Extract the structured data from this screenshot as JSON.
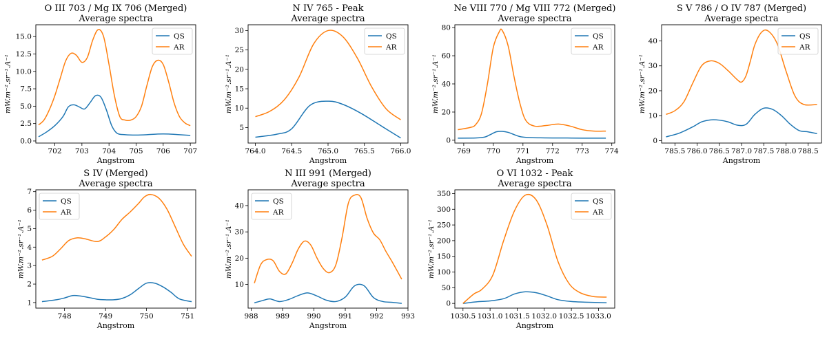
{
  "colors": {
    "QS": "#1f77b4",
    "AR": "#ff7f0e"
  },
  "chart_data": [
    {
      "type": "line",
      "title": "O III 703 / Mg IX 706 (Merged)",
      "subtitle": "Average spectra",
      "xlabel": "Angstrom",
      "ylabel": "mW.m⁻².sr⁻¹.A⁻¹",
      "xlim": [
        701.3,
        707.2
      ],
      "ylim": [
        -0.3,
        16.7
      ],
      "xticks": [
        702,
        703,
        704,
        705,
        706,
        707
      ],
      "xtick_labels": [
        "702",
        "703",
        "704",
        "705",
        "706",
        "707"
      ],
      "yticks": [
        0,
        2.5,
        5,
        7.5,
        10,
        12.5,
        15
      ],
      "ytick_labels": [
        "0.0",
        "2.5",
        "5.0",
        "7.5",
        "10.0",
        "12.5",
        "15.0"
      ],
      "legend": [
        "QS",
        "AR"
      ],
      "legend_position": "top-right",
      "series": [
        {
          "name": "QS",
          "x": [
            701.4,
            701.7,
            702.0,
            702.3,
            702.5,
            702.7,
            702.9,
            703.1,
            703.3,
            703.5,
            703.7,
            703.9,
            704.1,
            704.3,
            704.6,
            705.0,
            705.4,
            705.8,
            706.2,
            706.6,
            707.0
          ],
          "y": [
            0.6,
            1.3,
            2.2,
            3.5,
            4.9,
            5.2,
            4.9,
            4.6,
            5.5,
            6.5,
            6.3,
            4.5,
            2.2,
            1.1,
            0.9,
            0.85,
            0.9,
            1.0,
            1.0,
            0.9,
            0.8
          ]
        },
        {
          "name": "AR",
          "x": [
            701.4,
            701.6,
            701.8,
            702.0,
            702.2,
            702.4,
            702.6,
            702.8,
            703.0,
            703.2,
            703.4,
            703.6,
            703.8,
            704.0,
            704.2,
            704.4,
            704.6,
            704.8,
            705.0,
            705.2,
            705.4,
            705.6,
            705.8,
            706.0,
            706.2,
            706.4,
            706.6,
            706.8,
            707.0
          ],
          "y": [
            2.3,
            3.0,
            4.5,
            6.5,
            9.0,
            11.5,
            12.6,
            12.3,
            11.3,
            12.0,
            14.5,
            16.0,
            15.0,
            11.0,
            6.5,
            3.5,
            3.0,
            3.0,
            3.5,
            5.0,
            8.0,
            10.7,
            11.6,
            11.0,
            8.5,
            5.5,
            3.5,
            2.6,
            2.2
          ]
        }
      ]
    },
    {
      "type": "line",
      "title": "N IV 765 - Peak",
      "subtitle": "Average spectra",
      "xlabel": "Angstrom",
      "ylabel": "mW.m⁻².sr⁻¹.A⁻¹",
      "xlim": [
        763.9,
        766.1
      ],
      "ylim": [
        1.0,
        31.5
      ],
      "xticks": [
        764.0,
        764.5,
        765.0,
        765.5,
        766.0
      ],
      "xtick_labels": [
        "764.0",
        "764.5",
        "765.0",
        "765.5",
        "766.0"
      ],
      "yticks": [
        5,
        10,
        15,
        20,
        25,
        30
      ],
      "ytick_labels": [
        "5",
        "10",
        "15",
        "20",
        "25",
        "30"
      ],
      "legend": [
        "QS",
        "AR"
      ],
      "legend_position": "top-right",
      "series": [
        {
          "name": "QS",
          "x": [
            764.0,
            764.3,
            764.5,
            764.75,
            765.0,
            765.2,
            765.45,
            765.75,
            766.0
          ],
          "y": [
            2.5,
            3.3,
            4.7,
            10.7,
            11.8,
            11.0,
            8.7,
            5.2,
            2.3
          ]
        },
        {
          "name": "AR",
          "x": [
            764.0,
            764.2,
            764.4,
            764.6,
            764.8,
            765.0,
            765.2,
            765.4,
            765.6,
            765.8,
            766.0
          ],
          "y": [
            7.8,
            9.2,
            12.2,
            18.0,
            26.5,
            30.0,
            28.5,
            23.0,
            15.5,
            9.8,
            7.0
          ]
        }
      ]
    },
    {
      "type": "line",
      "title": "Ne VIII 770 / Mg VIII 772 (Merged)",
      "subtitle": "Average spectra",
      "xlabel": "Angstrom",
      "ylabel": "mW.m⁻².sr⁻¹.A⁻¹",
      "xlim": [
        768.7,
        774.1
      ],
      "ylim": [
        -2,
        82
      ],
      "xticks": [
        769,
        770,
        771,
        772,
        773,
        774
      ],
      "xtick_labels": [
        "769",
        "770",
        "771",
        "772",
        "773",
        "774"
      ],
      "yticks": [
        0,
        20,
        40,
        60,
        80
      ],
      "ytick_labels": [
        "0",
        "20",
        "40",
        "60",
        "80"
      ],
      "legend": [
        "QS",
        "AR"
      ],
      "legend_position": "top-right",
      "series": [
        {
          "name": "QS",
          "x": [
            768.8,
            769.4,
            769.7,
            769.9,
            770.1,
            770.3,
            770.5,
            770.7,
            770.9,
            771.2,
            771.6,
            772.0,
            772.5,
            773.0,
            773.8
          ],
          "y": [
            1.5,
            1.6,
            2.2,
            4.0,
            6.0,
            6.3,
            5.6,
            4.0,
            2.6,
            1.9,
            1.7,
            1.6,
            1.6,
            1.5,
            1.5
          ]
        },
        {
          "name": "AR",
          "x": [
            768.8,
            769.2,
            769.4,
            769.6,
            769.8,
            770.0,
            770.2,
            770.3,
            770.5,
            770.7,
            770.9,
            771.1,
            771.4,
            771.8,
            772.2,
            772.6,
            773.0,
            773.4,
            773.8
          ],
          "y": [
            7.5,
            9.0,
            11.0,
            19.0,
            40.0,
            66.0,
            77.0,
            78.0,
            67.0,
            45.0,
            26.0,
            14.0,
            10.0,
            10.5,
            11.5,
            10.0,
            7.5,
            6.5,
            6.5
          ]
        }
      ]
    },
    {
      "type": "line",
      "title": "S V 786 / O IV 787 (Merged)",
      "subtitle": "Average spectra",
      "xlabel": "Angstrom",
      "ylabel": "mW.m⁻².sr⁻¹.A⁻¹",
      "xlim": [
        785.2,
        788.8
      ],
      "ylim": [
        -1,
        46.5
      ],
      "xticks": [
        785.5,
        786.0,
        786.5,
        787.0,
        787.5,
        788.0,
        788.5
      ],
      "xtick_labels": [
        "785.5",
        "786.0",
        "786.5",
        "787.0",
        "787.5",
        "788.0",
        "788.5"
      ],
      "yticks": [
        0,
        10,
        20,
        30,
        40
      ],
      "ytick_labels": [
        "0",
        "10",
        "20",
        "30",
        "40"
      ],
      "legend": [
        "QS",
        "AR"
      ],
      "legend_position": "top-right",
      "series": [
        {
          "name": "QS",
          "x": [
            785.3,
            785.6,
            785.9,
            786.1,
            786.3,
            786.5,
            786.7,
            786.9,
            787.1,
            787.3,
            787.5,
            787.7,
            787.9,
            788.1,
            788.3,
            788.5,
            788.7
          ],
          "y": [
            1.5,
            3.0,
            5.5,
            7.5,
            8.3,
            8.2,
            7.5,
            6.2,
            6.5,
            10.5,
            13.0,
            12.5,
            10.0,
            6.5,
            4.0,
            3.5,
            2.8
          ]
        },
        {
          "name": "AR",
          "x": [
            785.3,
            785.5,
            785.7,
            785.9,
            786.1,
            786.3,
            786.5,
            786.7,
            786.9,
            787.0,
            787.1,
            787.2,
            787.3,
            787.45,
            787.6,
            787.8,
            788.0,
            788.2,
            788.4,
            788.7
          ],
          "y": [
            10.5,
            12.0,
            15.5,
            23.0,
            30.0,
            32.0,
            31.0,
            28.0,
            24.5,
            23.5,
            26.0,
            32.0,
            38.5,
            43.5,
            44.0,
            39.0,
            28.0,
            18.0,
            14.5,
            14.5
          ]
        }
      ]
    },
    {
      "type": "line",
      "title": "S IV (Merged)",
      "subtitle": "Average spectra",
      "xlabel": "Angstrom",
      "ylabel": "mW.m⁻².sr⁻¹.A⁻¹",
      "xlim": [
        747.3,
        751.2
      ],
      "ylim": [
        0.7,
        7.1
      ],
      "xticks": [
        748,
        749,
        750,
        751
      ],
      "xtick_labels": [
        "748",
        "749",
        "750",
        "751"
      ],
      "yticks": [
        1,
        2,
        3,
        4,
        5,
        6,
        7
      ],
      "ytick_labels": [
        "1",
        "2",
        "3",
        "4",
        "5",
        "6",
        "7"
      ],
      "legend": [
        "QS",
        "AR"
      ],
      "legend_position": "top-left",
      "series": [
        {
          "name": "QS",
          "x": [
            747.45,
            747.8,
            748.0,
            748.2,
            748.4,
            748.6,
            748.8,
            749.0,
            749.2,
            749.4,
            749.6,
            749.8,
            750.0,
            750.2,
            750.4,
            750.6,
            750.8,
            751.1
          ],
          "y": [
            1.05,
            1.15,
            1.25,
            1.38,
            1.35,
            1.27,
            1.18,
            1.15,
            1.15,
            1.22,
            1.42,
            1.75,
            2.05,
            2.05,
            1.85,
            1.55,
            1.2,
            1.05
          ]
        },
        {
          "name": "AR",
          "x": [
            747.45,
            747.7,
            747.9,
            748.1,
            748.3,
            748.5,
            748.8,
            749.0,
            749.2,
            749.4,
            749.6,
            749.8,
            749.95,
            750.1,
            750.3,
            750.5,
            750.7,
            750.9,
            751.1
          ],
          "y": [
            3.3,
            3.5,
            3.9,
            4.35,
            4.5,
            4.45,
            4.3,
            4.55,
            4.95,
            5.5,
            5.9,
            6.35,
            6.72,
            6.85,
            6.65,
            6.05,
            5.1,
            4.15,
            3.5
          ]
        }
      ]
    },
    {
      "type": "line",
      "title": "N III 991 (Merged)",
      "subtitle": "Average spectra",
      "xlabel": "Angstrom",
      "ylabel": "mW.m⁻².sr⁻¹.A⁻¹",
      "xlim": [
        987.9,
        993.0
      ],
      "ylim": [
        1,
        46
      ],
      "xticks": [
        988,
        989,
        990,
        991,
        992,
        993
      ],
      "xtick_labels": [
        "988",
        "989",
        "990",
        "991",
        "992",
        "993"
      ],
      "yticks": [
        10,
        20,
        30,
        40
      ],
      "ytick_labels": [
        "10",
        "20",
        "30",
        "40"
      ],
      "legend": [
        "QS",
        "AR"
      ],
      "legend_position": "top-left",
      "series": [
        {
          "name": "QS",
          "x": [
            988.1,
            988.4,
            988.6,
            988.9,
            989.2,
            989.5,
            989.8,
            990.1,
            990.4,
            990.7,
            991.0,
            991.3,
            991.6,
            991.9,
            992.2,
            992.5,
            992.8
          ],
          "y": [
            3.0,
            4.0,
            4.5,
            3.5,
            4.3,
            5.8,
            6.8,
            5.6,
            4.0,
            3.5,
            5.2,
            9.5,
            9.5,
            5.0,
            3.5,
            3.2,
            2.8
          ]
        },
        {
          "name": "AR",
          "x": [
            988.1,
            988.3,
            988.5,
            988.7,
            988.9,
            989.1,
            989.3,
            989.5,
            989.7,
            989.9,
            990.1,
            990.3,
            990.5,
            990.7,
            990.9,
            991.1,
            991.3,
            991.5,
            991.7,
            991.9,
            992.1,
            992.3,
            992.5,
            992.8
          ],
          "y": [
            10.5,
            17.5,
            19.5,
            19.0,
            15.0,
            14.0,
            18.0,
            23.5,
            26.5,
            25.0,
            20.0,
            16.0,
            14.5,
            17.5,
            28.0,
            41.0,
            44.0,
            43.0,
            35.0,
            29.5,
            27.0,
            22.5,
            18.5,
            12.0
          ]
        }
      ]
    },
    {
      "type": "line",
      "title": "O VI 1032 - Peak",
      "subtitle": "Average spectra",
      "xlabel": "Angstrom",
      "ylabel": "mW.m⁻².sr⁻¹.A⁻¹",
      "xlim": [
        1030.35,
        1033.3
      ],
      "ylim": [
        -15,
        362
      ],
      "xticks": [
        1030.5,
        1031.0,
        1031.5,
        1032.0,
        1032.5,
        1033.0
      ],
      "xtick_labels": [
        "1030.5",
        "1031.0",
        "1031.5",
        "1032.0",
        "1032.5",
        "1033.0"
      ],
      "yticks": [
        0,
        50,
        100,
        150,
        200,
        250,
        300,
        350
      ],
      "ytick_labels": [
        "0",
        "50",
        "100",
        "150",
        "200",
        "250",
        "300",
        "350"
      ],
      "legend": [
        "QS",
        "AR"
      ],
      "legend_position": "top-right",
      "series": [
        {
          "name": "QS",
          "x": [
            1030.5,
            1030.75,
            1031.0,
            1031.25,
            1031.45,
            1031.65,
            1031.85,
            1032.05,
            1032.25,
            1032.5,
            1032.75,
            1033.15
          ],
          "y": [
            0,
            5,
            8,
            15,
            30,
            37,
            34,
            24,
            12,
            6,
            4,
            2
          ]
        },
        {
          "name": "AR",
          "x": [
            1030.5,
            1030.7,
            1030.85,
            1031.05,
            1031.25,
            1031.45,
            1031.65,
            1031.85,
            1032.05,
            1032.25,
            1032.45,
            1032.65,
            1032.9,
            1033.15
          ],
          "y": [
            0,
            30,
            45,
            90,
            200,
            295,
            345,
            330,
            250,
            135,
            65,
            35,
            22,
            20
          ]
        }
      ]
    }
  ]
}
